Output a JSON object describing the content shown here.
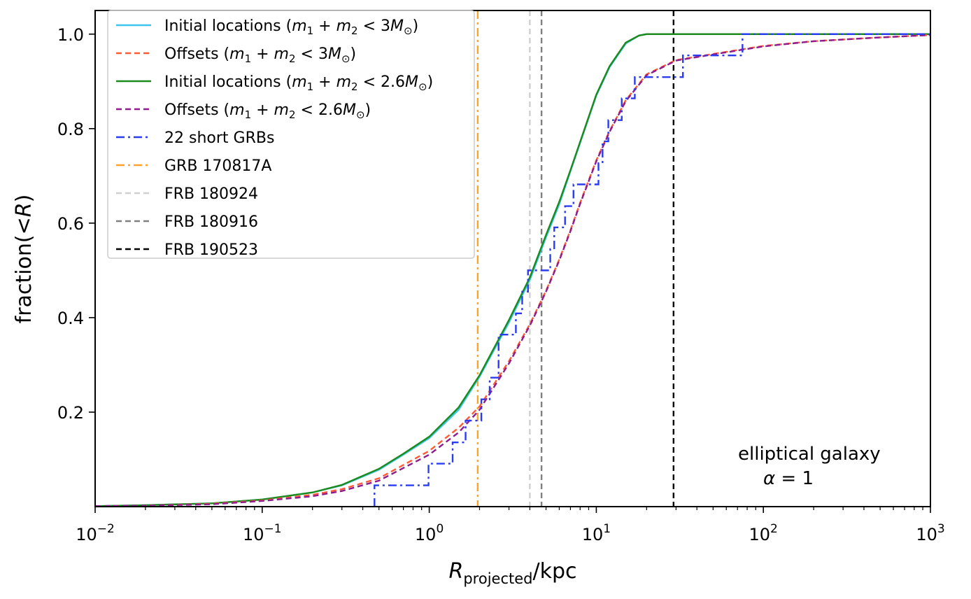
{
  "chart_data": {
    "type": "line",
    "title": "",
    "xlabel": "R_projected/kpc",
    "xlabel_parts": {
      "main": "R",
      "sub": "projected",
      "suffix": "/kpc"
    },
    "ylabel": "fraction(<R)",
    "ylabel_parts": {
      "prefix": "fraction(<",
      "var": "R",
      "suffix": ")"
    },
    "x_scale": "log",
    "xlim": [
      0.01,
      1000
    ],
    "ylim": [
      0.0,
      1.05
    ],
    "x_ticks": [
      {
        "value": 0.01,
        "base": "10",
        "exp": "−2"
      },
      {
        "value": 0.1,
        "base": "10",
        "exp": "−1"
      },
      {
        "value": 1,
        "base": "10",
        "exp": "0"
      },
      {
        "value": 10,
        "base": "10",
        "exp": "1"
      },
      {
        "value": 100,
        "base": "10",
        "exp": "2"
      },
      {
        "value": 1000,
        "base": "10",
        "exp": "3"
      }
    ],
    "y_ticks": [
      {
        "value": 0.2,
        "label": "0.2"
      },
      {
        "value": 0.4,
        "label": "0.4"
      },
      {
        "value": 0.6,
        "label": "0.6"
      },
      {
        "value": 0.8,
        "label": "0.8"
      },
      {
        "value": 1.0,
        "label": "1.0"
      }
    ],
    "legend_position": "top-left",
    "grid": false,
    "series": [
      {
        "name": "Initial locations (m1 + m2 < 3M⊙)",
        "label_parts": [
          "Initial locations (",
          "m",
          "1",
          " + ",
          "m",
          "2",
          " < 3",
          "M",
          "⊙",
          ")"
        ],
        "color": "#3fc4f0",
        "style": "solid",
        "kind": "curve",
        "x": [
          0.01,
          0.02,
          0.05,
          0.1,
          0.2,
          0.3,
          0.5,
          0.7,
          1.0,
          1.5,
          2.0,
          3.0,
          4.0,
          5.0,
          6.0,
          7.0,
          8.0,
          10.0,
          12.0,
          15.0,
          18.0,
          20.0,
          1000
        ],
        "y": [
          0.001,
          0.003,
          0.007,
          0.015,
          0.03,
          0.045,
          0.078,
          0.11,
          0.145,
          0.205,
          0.275,
          0.39,
          0.48,
          0.57,
          0.64,
          0.71,
          0.77,
          0.87,
          0.93,
          0.98,
          0.997,
          1.0,
          1.0
        ]
      },
      {
        "name": "Offsets (m1 + m2 < 3M⊙)",
        "label_parts": [
          "Offsets (",
          "m",
          "1",
          " + ",
          "m",
          "2",
          " < 3",
          "M",
          "⊙",
          ")"
        ],
        "color": "#ff5a36",
        "style": "dashed",
        "kind": "curve",
        "x": [
          0.01,
          0.02,
          0.05,
          0.1,
          0.2,
          0.3,
          0.5,
          1.0,
          1.5,
          2.0,
          3.0,
          4.0,
          5.0,
          6.0,
          7.0,
          8.0,
          10.0,
          12.0,
          15.0,
          20.0,
          30.0,
          50.0,
          100.0,
          200.0,
          500.0,
          1000.0
        ],
        "y": [
          0.001,
          0.002,
          0.006,
          0.013,
          0.025,
          0.037,
          0.06,
          0.118,
          0.167,
          0.212,
          0.308,
          0.386,
          0.457,
          0.523,
          0.585,
          0.643,
          0.733,
          0.795,
          0.86,
          0.915,
          0.945,
          0.958,
          0.975,
          0.985,
          0.993,
          0.998
        ]
      },
      {
        "name": "Initial locations (m1 + m2 < 2.6M⊙)",
        "label_parts": [
          "Initial locations (",
          "m",
          "1",
          " + ",
          "m",
          "2",
          " < 2.6",
          "M",
          "⊙",
          ")"
        ],
        "color": "#1c8a1c",
        "style": "solid",
        "kind": "curve",
        "x": [
          0.01,
          0.02,
          0.05,
          0.1,
          0.2,
          0.3,
          0.5,
          0.7,
          1.0,
          1.5,
          2.0,
          3.0,
          4.0,
          5.0,
          6.0,
          7.0,
          8.0,
          10.0,
          12.0,
          15.0,
          18.0,
          20.0,
          1000
        ],
        "y": [
          0.001,
          0.003,
          0.007,
          0.015,
          0.03,
          0.046,
          0.08,
          0.112,
          0.148,
          0.21,
          0.278,
          0.395,
          0.485,
          0.575,
          0.645,
          0.712,
          0.772,
          0.872,
          0.932,
          0.982,
          0.997,
          1.0,
          1.0
        ]
      },
      {
        "name": "Offsets (m1 + m2 < 2.6M⊙)",
        "label_parts": [
          "Offsets (",
          "m",
          "1",
          " + ",
          "m",
          "2",
          " < 2.6",
          "M",
          "⊙",
          ")"
        ],
        "color": "#8e1c8e",
        "style": "dashed",
        "kind": "curve",
        "x": [
          0.01,
          0.02,
          0.05,
          0.1,
          0.2,
          0.3,
          0.5,
          1.0,
          1.5,
          2.0,
          3.0,
          4.0,
          5.0,
          6.0,
          7.0,
          8.0,
          10.0,
          12.0,
          15.0,
          20.0,
          30.0,
          50.0,
          100.0,
          200.0,
          500.0,
          1000.0
        ],
        "y": [
          0.001,
          0.002,
          0.005,
          0.012,
          0.022,
          0.033,
          0.055,
          0.11,
          0.157,
          0.205,
          0.303,
          0.383,
          0.455,
          0.521,
          0.583,
          0.641,
          0.731,
          0.793,
          0.858,
          0.913,
          0.944,
          0.957,
          0.974,
          0.985,
          0.993,
          0.998
        ]
      },
      {
        "name": "22 short GRBs",
        "color": "#2a3cf0",
        "style": "dashdot",
        "kind": "step",
        "x": [
          0.47,
          0.99,
          1.38,
          1.65,
          2.05,
          2.3,
          2.6,
          3.3,
          3.6,
          3.9,
          5.3,
          5.6,
          6.5,
          7.3,
          10.3,
          10.9,
          11.8,
          14.2,
          17.0,
          33.0,
          75.0,
          1000.0
        ],
        "y": [
          0.045,
          0.091,
          0.136,
          0.182,
          0.227,
          0.273,
          0.364,
          0.409,
          0.455,
          0.5,
          0.545,
          0.591,
          0.636,
          0.682,
          0.727,
          0.773,
          0.818,
          0.864,
          0.909,
          0.955,
          1.0,
          1.0
        ]
      },
      {
        "name": "GRB 170817A",
        "color": "#ffa227",
        "style": "dashdot",
        "kind": "vline",
        "x": 1.95
      },
      {
        "name": "FRB 180924",
        "color": "#d0d0d0",
        "style": "dashed",
        "kind": "vline",
        "x": 4.0
      },
      {
        "name": "FRB 180916",
        "color": "#808080",
        "style": "dashed",
        "kind": "vline",
        "x": 4.7
      },
      {
        "name": "FRB 190523",
        "color": "#000000",
        "style": "dashed",
        "kind": "vline",
        "x": 29.0
      }
    ],
    "annotations": [
      {
        "text": "elliptical galaxy"
      },
      {
        "text": "α = 1",
        "parts": [
          "α",
          " = 1"
        ]
      }
    ]
  }
}
